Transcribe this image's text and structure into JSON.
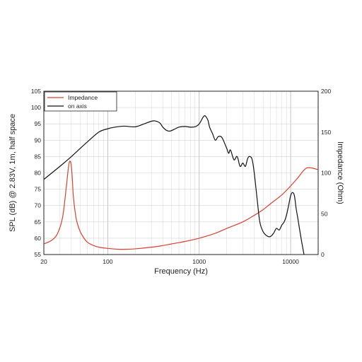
{
  "chart_data": {
    "type": "line",
    "xlabel": "Frequency (Hz)",
    "ylabel_left": "SPL (dB) @ 2.83V, 1m, half space",
    "ylabel_right": "Impedance (Ohm)",
    "x_scale": "log",
    "xlim": [
      20,
      20000
    ],
    "ylim_left": [
      55,
      105
    ],
    "ylim_right": [
      0,
      200
    ],
    "grid": true,
    "legend_position": "top-left",
    "x_ticks": [
      {
        "value": 20,
        "label": "20"
      },
      {
        "value": 100,
        "label": "100"
      },
      {
        "value": 1000,
        "label": "1000"
      },
      {
        "value": 10000,
        "label": "10000"
      }
    ],
    "y_ticks_left": [
      "55",
      "60",
      "65",
      "70",
      "75",
      "80",
      "85",
      "90",
      "95",
      "100",
      "105"
    ],
    "y_ticks_right": [
      "0",
      "50",
      "100",
      "150",
      "200"
    ],
    "series": [
      {
        "name": "Impedance",
        "axis": "right",
        "color": "#d9402e",
        "x": [
          20,
          24,
          28,
          32,
          35,
          37,
          38,
          39,
          40,
          41,
          42,
          44,
          46,
          50,
          55,
          60,
          70,
          80,
          100,
          130,
          160,
          200,
          300,
          400,
          500,
          700,
          1000,
          1500,
          2000,
          3000,
          4000,
          5000,
          6000,
          8000,
          10000,
          12000,
          15000,
          20000
        ],
        "values": [
          13,
          17,
          25,
          45,
          80,
          105,
          113,
          114,
          108,
          92,
          72,
          52,
          40,
          28,
          20,
          15,
          11,
          9,
          7.5,
          6.5,
          6.5,
          7,
          9,
          11,
          13,
          16,
          20,
          26,
          32,
          40,
          48,
          55,
          62,
          73,
          84,
          94,
          106,
          104
        ]
      },
      {
        "name": "on axis",
        "axis": "left",
        "color": "#111111",
        "x": [
          20,
          30,
          40,
          50,
          60,
          80,
          100,
          120,
          150,
          200,
          250,
          300,
          330,
          370,
          400,
          440,
          480,
          530,
          600,
          700,
          800,
          900,
          1000,
          1100,
          1150,
          1200,
          1250,
          1300,
          1400,
          1500,
          1600,
          1700,
          1800,
          2000,
          2100,
          2200,
          2400,
          2600,
          2800,
          3000,
          3200,
          3400,
          3600,
          3800,
          4000,
          4300,
          4600,
          5000,
          5500,
          6000,
          6500,
          7000,
          7500,
          8000,
          8500,
          9000,
          9500,
          10000,
          10500,
          11000,
          11500,
          12000,
          13000,
          14000
        ],
        "values": [
          78,
          82,
          85,
          87.5,
          89.5,
          92.5,
          93.5,
          94,
          94.3,
          94.1,
          95,
          95.8,
          95.9,
          95.3,
          94,
          93,
          92.8,
          93.3,
          94,
          94.2,
          94,
          94.1,
          95,
          97,
          97.5,
          97,
          96,
          94,
          92,
          90,
          91,
          91.2,
          90.5,
          87.5,
          86,
          87,
          84,
          85,
          82,
          83,
          82,
          84.5,
          85,
          84,
          80,
          72,
          65,
          62,
          60.7,
          60.5,
          61.5,
          63,
          62.5,
          64,
          65,
          67,
          70,
          73,
          74,
          73,
          69,
          66,
          60,
          55
        ]
      }
    ]
  }
}
